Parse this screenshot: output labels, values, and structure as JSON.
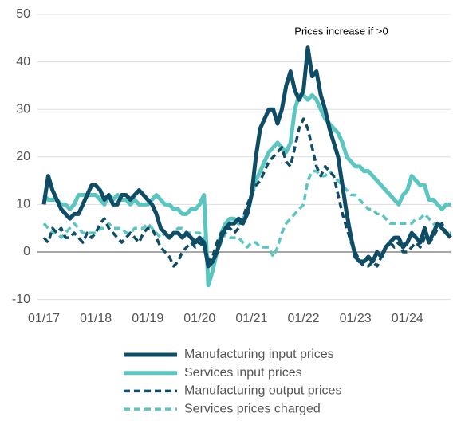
{
  "chart_data": {
    "type": "line",
    "annotation": "Prices increase if >0",
    "categories": [
      "01/17",
      null,
      null,
      null,
      null,
      null,
      null,
      null,
      null,
      null,
      null,
      null,
      "01/18",
      null,
      null,
      null,
      null,
      null,
      null,
      null,
      null,
      null,
      null,
      null,
      "01/19",
      null,
      null,
      null,
      null,
      null,
      null,
      null,
      null,
      null,
      null,
      null,
      "01/20",
      null,
      null,
      null,
      null,
      null,
      null,
      null,
      null,
      null,
      null,
      null,
      "01/21",
      null,
      null,
      null,
      null,
      null,
      null,
      null,
      null,
      null,
      null,
      null,
      "01/22",
      null,
      null,
      null,
      null,
      null,
      null,
      null,
      null,
      null,
      null,
      null,
      "01/23",
      null,
      null,
      null,
      null,
      null,
      null,
      null,
      null,
      null,
      null,
      null,
      "01/24",
      null,
      null,
      null,
      null,
      null,
      null,
      null,
      null,
      null,
      null
    ],
    "ylim": [
      -10,
      50
    ],
    "yticks": [
      -10,
      0,
      10,
      20,
      30,
      40,
      50
    ],
    "grid": true,
    "series": [
      {
        "name": "Manufacturing input prices",
        "color": "#0f4c66",
        "dashed": false,
        "values": [
          10,
          16,
          13,
          11,
          9,
          8,
          7,
          8,
          8,
          10,
          12,
          14,
          14,
          13,
          11,
          12,
          10,
          10,
          12,
          12,
          11,
          12,
          13,
          12,
          11,
          10,
          8,
          5,
          4,
          3,
          4,
          4,
          3,
          4,
          3,
          2,
          3,
          2,
          -3,
          -2,
          0,
          3,
          5,
          6,
          6,
          7,
          6,
          8,
          12,
          20,
          26,
          28,
          30,
          30,
          27,
          30,
          35,
          38,
          34,
          32,
          34,
          43,
          37,
          38,
          33,
          30,
          26,
          23,
          20,
          14,
          8,
          3,
          -1,
          -2,
          -2,
          -1,
          -2,
          0,
          -1,
          1,
          2,
          3,
          3,
          1,
          2,
          4,
          3,
          2,
          5,
          2,
          4,
          6,
          5,
          4,
          3
        ]
      },
      {
        "name": "Services input prices",
        "color": "#5bc6c0",
        "dashed": false,
        "values": [
          12,
          11,
          11,
          11,
          10,
          10,
          9,
          10,
          12,
          12,
          12,
          12,
          12,
          11,
          10,
          12,
          11,
          12,
          11,
          11,
          10,
          11,
          10,
          10,
          10,
          11,
          12,
          11,
          10,
          10,
          9,
          9,
          8,
          8,
          9,
          9,
          10,
          12,
          -7,
          -4,
          0,
          4,
          6,
          7,
          7,
          6,
          7,
          8,
          12,
          15,
          17,
          19,
          21,
          22,
          23,
          22,
          21,
          23,
          30,
          33,
          33,
          32,
          33,
          32,
          30,
          28,
          27,
          26,
          25,
          23,
          20,
          19,
          18,
          18,
          17,
          17,
          16,
          15,
          14,
          13,
          12,
          11,
          10,
          12,
          13,
          16,
          15,
          14,
          14,
          11,
          11,
          10,
          9,
          10,
          10
        ]
      },
      {
        "name": "Manufacturing output prices",
        "color": "#0f4c66",
        "dashed": true,
        "values": [
          3,
          2,
          5,
          4,
          5,
          3,
          3,
          4,
          3,
          2,
          4,
          3,
          4,
          6,
          7,
          5,
          4,
          3,
          2,
          3,
          4,
          3,
          2,
          4,
          5,
          5,
          3,
          1,
          0,
          -1,
          -3,
          -2,
          0,
          1,
          2,
          1,
          2,
          1,
          -2,
          -1,
          2,
          4,
          5,
          5,
          4,
          5,
          7,
          10,
          12,
          14,
          15,
          17,
          19,
          20,
          21,
          22,
          19,
          18,
          22,
          26,
          28,
          26,
          22,
          18,
          16,
          18,
          17,
          16,
          12,
          8,
          5,
          2,
          0,
          -2,
          -3,
          -3,
          -2,
          -3,
          -1,
          1,
          2,
          1,
          2,
          0,
          0,
          1,
          2,
          1,
          3,
          2,
          3,
          5,
          6,
          4,
          4
        ]
      },
      {
        "name": "Services prices charged",
        "color": "#5bc6c0",
        "dashed": true,
        "values": [
          6,
          5,
          4,
          4,
          3,
          4,
          5,
          6,
          5,
          4,
          4,
          4,
          4,
          5,
          5,
          6,
          5,
          5,
          5,
          4,
          4,
          5,
          5,
          5,
          6,
          5,
          4,
          3,
          4,
          3,
          4,
          5,
          5,
          4,
          4,
          4,
          4,
          3,
          -1,
          -3,
          0,
          2,
          4,
          3,
          3,
          3,
          2,
          1,
          2,
          2,
          1,
          1,
          1,
          -1,
          1,
          4,
          6,
          7,
          8,
          9,
          10,
          15,
          17,
          17,
          16,
          16,
          17,
          16,
          15,
          14,
          13,
          12,
          12,
          11,
          10,
          9,
          9,
          8,
          8,
          7,
          6,
          6,
          6,
          6,
          6,
          6,
          7,
          7,
          8,
          7,
          6,
          5,
          5,
          4,
          4
        ]
      }
    ]
  }
}
